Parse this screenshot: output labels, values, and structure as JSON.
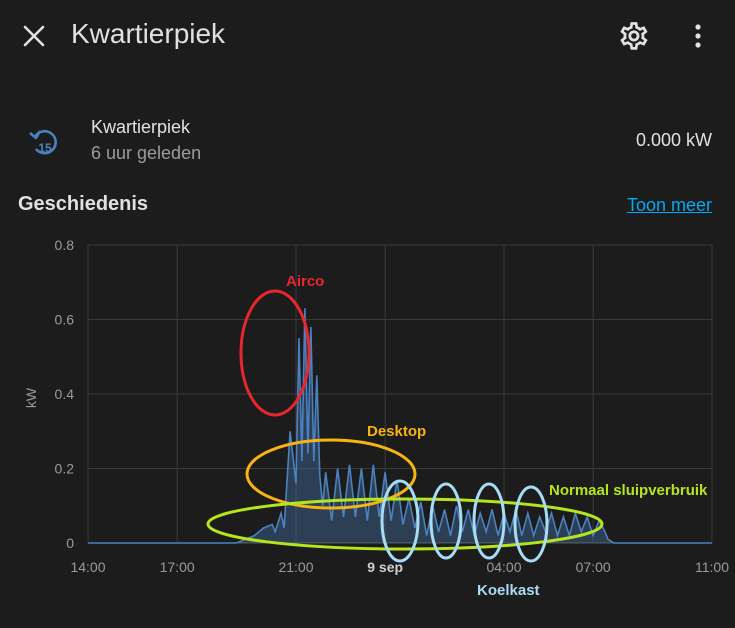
{
  "header": {
    "title": "Kwartierpiek",
    "close_icon": "close-icon",
    "settings_icon": "gear-icon",
    "more_icon": "dots-vertical-icon"
  },
  "entity": {
    "icon": "history-15-icon",
    "name": "Kwartierpiek",
    "last_changed": "6 uur geleden",
    "value": "0.000 kW"
  },
  "history": {
    "title": "Geschiedenis",
    "show_more": "Toon meer"
  },
  "colors": {
    "background": "#1c1c1c",
    "series": "#4a82c0",
    "link": "#03a9f4"
  },
  "chart_data": {
    "type": "line",
    "ylabel": "kW",
    "ylim": [
      0,
      0.8
    ],
    "y_ticks": [
      "0",
      "0.2",
      "0.4",
      "0.6",
      "0.8"
    ],
    "x_ticks": [
      "14:00",
      "17:00",
      "21:00",
      "9 sep",
      "04:00",
      "07:00",
      "11:00"
    ],
    "series": [
      {
        "x_hours": [
          14,
          15,
          16,
          17,
          18,
          18.5,
          19,
          19.3,
          19.6,
          19.9,
          20.2,
          20.3,
          20.5,
          20.6,
          20.8,
          21,
          21.1,
          21.2,
          21.3,
          21.4,
          21.5,
          21.6,
          21.7,
          21.8,
          21.9,
          22.0,
          22.2,
          22.4,
          22.6,
          22.8,
          23.0,
          23.2,
          23.4,
          23.6,
          23.8,
          24.0,
          24.2,
          24.4,
          24.6,
          24.8,
          25.0,
          25.2,
          25.4,
          25.6,
          25.8,
          26.0,
          26.2,
          26.4,
          26.6,
          26.8,
          27.0,
          27.2,
          27.4,
          27.6,
          27.8,
          28.0,
          28.2,
          28.4,
          28.6,
          28.8,
          29.0,
          29.2,
          29.4,
          29.6,
          29.8,
          30.0,
          30.2,
          30.4,
          30.6,
          30.8,
          31.0,
          31.2,
          31.4,
          31.5,
          31.7,
          32,
          33,
          35
        ],
        "values": [
          0,
          0,
          0,
          0,
          0,
          0,
          0,
          0.01,
          0.02,
          0.04,
          0.05,
          0.03,
          0.08,
          0.04,
          0.3,
          0.16,
          0.55,
          0.22,
          0.63,
          0.24,
          0.58,
          0.22,
          0.45,
          0.18,
          0.1,
          0.19,
          0.06,
          0.2,
          0.07,
          0.21,
          0.07,
          0.2,
          0.06,
          0.21,
          0.07,
          0.19,
          0.06,
          0.17,
          0.05,
          0.12,
          0.04,
          0.11,
          0.02,
          0.1,
          0.03,
          0.09,
          0.02,
          0.1,
          0.03,
          0.09,
          0.02,
          0.08,
          0.03,
          0.09,
          0.02,
          0.08,
          0.03,
          0.09,
          0.02,
          0.08,
          0.02,
          0.07,
          0.03,
          0.08,
          0.02,
          0.07,
          0.02,
          0.08,
          0.03,
          0.07,
          0.02,
          0.06,
          0.03,
          0.01,
          0,
          0,
          0,
          0
        ]
      }
    ],
    "annotations": [
      {
        "label": "Airco",
        "color": "#e8262d"
      },
      {
        "label": "Desktop",
        "color": "#f7b314"
      },
      {
        "label": "Normaal sluipverbruik",
        "color": "#b5e61d"
      },
      {
        "label": "Koelkast",
        "color": "#a8dcf5"
      }
    ]
  }
}
